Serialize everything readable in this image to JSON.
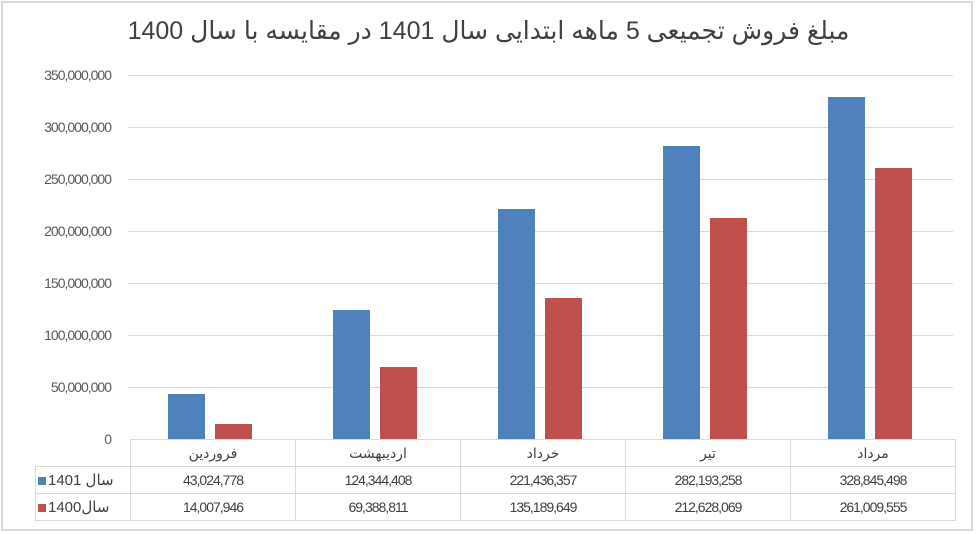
{
  "chart_data": {
    "type": "bar",
    "title": "مبلغ فروش تجمیعی 5 ماهه ابتدایی سال 1401 در مقایسه با سال 1400",
    "xlabel": "",
    "ylabel": "",
    "ylim": [
      0,
      350000000
    ],
    "yticks": [
      0,
      50000000,
      100000000,
      150000000,
      200000000,
      250000000,
      300000000,
      350000000
    ],
    "ytick_labels": [
      "0",
      "50,000,000",
      "100,000,000",
      "150,000,000",
      "200,000,000",
      "250,000,000",
      "300,000,000",
      "350,000,000"
    ],
    "grid": true,
    "legend_position": "data-table",
    "categories": [
      "فروردین",
      "اردیبهشت",
      "خرداد",
      "تیر",
      "مرداد"
    ],
    "series": [
      {
        "name": "سال 1401",
        "color": "#4f81bd",
        "values": [
          43024778,
          124344408,
          221436357,
          282193258,
          328845498
        ],
        "labels": [
          "43,024,778",
          "124,344,408",
          "221,436,357",
          "282,193,258",
          "328,845,498"
        ]
      },
      {
        "name": "سال1400",
        "color": "#c0504d",
        "values": [
          14007946,
          69388811,
          135189649,
          212628069,
          261009555
        ],
        "labels": [
          "14,007,946",
          "69,388,811",
          "135,189,649",
          "212,628,069",
          "261,009,555"
        ]
      }
    ]
  },
  "legend": {
    "s1401": {
      "text": "سال 1401"
    },
    "s1400": {
      "text": "سال1400"
    }
  }
}
